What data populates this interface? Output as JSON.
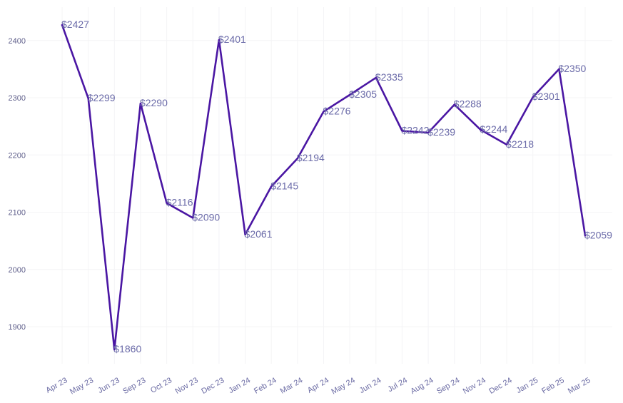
{
  "chart_data": {
    "type": "line",
    "categories": [
      "Apr 23",
      "May 23",
      "Jun 23",
      "Sep 23",
      "Oct 23",
      "Nov 23",
      "Dec 23",
      "Jan 24",
      "Feb 24",
      "Mar 24",
      "Apr 24",
      "May 24",
      "Jun 24",
      "Jul 24",
      "Aug 24",
      "Sep 24",
      "Nov 24",
      "Dec 24",
      "Jan 25",
      "Feb 25",
      "Mar 25"
    ],
    "values": [
      2427,
      2299,
      1860,
      2290,
      2116,
      2090,
      2401,
      2061,
      2145,
      2194,
      2276,
      2305,
      2335,
      2242,
      2239,
      2288,
      2244,
      2218,
      2301,
      2350,
      2059
    ],
    "data_labels": [
      "$2427",
      "$2299",
      "$1860",
      "$2290",
      "$2116",
      "$2090",
      "$2401",
      "$2061",
      "$2145",
      "$2194",
      "$2276",
      "$2305",
      "$2335",
      "$2242",
      "$2239",
      "$2288",
      "$2244",
      "$2218",
      "$2301",
      "$2350",
      "$2059"
    ],
    "yticks": [
      1900,
      2000,
      2100,
      2200,
      2300,
      2400
    ],
    "ylim": [
      1835,
      2445
    ],
    "grid": true,
    "legend": false,
    "title": "",
    "xlabel": "",
    "ylabel": "",
    "colors": {
      "line": "#4a16a3",
      "label": "#6a6aa8",
      "tick": "#6a6aa3"
    }
  }
}
